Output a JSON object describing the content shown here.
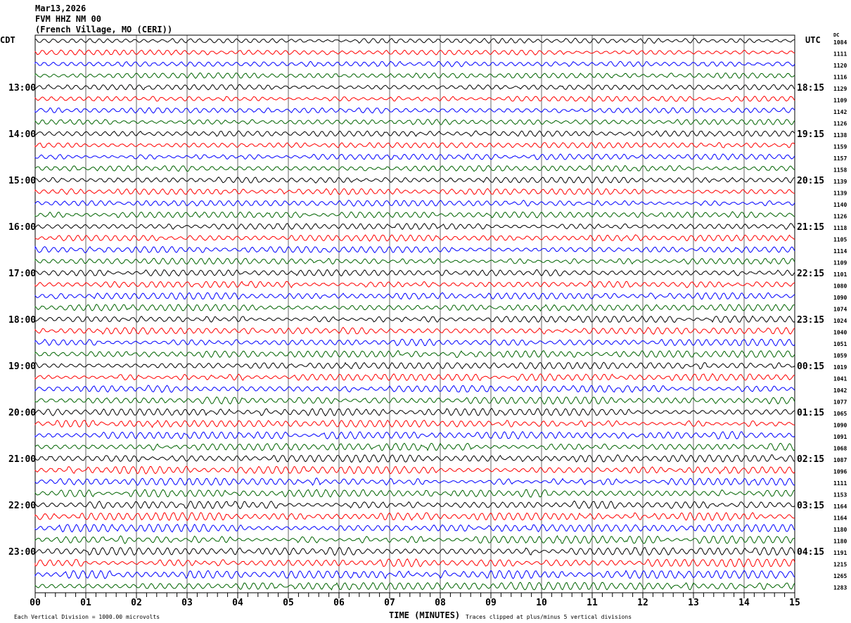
{
  "header": {
    "date": "Mar13,2026",
    "station": "FVM HHZ NM 00",
    "location": "(French Village, MO (CERI))"
  },
  "left_tz": "CDT",
  "right_tz": "UTC",
  "dc_header": "DC",
  "footer": {
    "scale_note": "Each Vertical Division = 1000.00 microvolts",
    "xlabel": "TIME (MINUTES)",
    "clip_note": "Traces clipped at plus/minus 5 vertical divisions"
  },
  "chart_data": {
    "type": "line",
    "title": "FVM HHZ NM 00",
    "xlabel": "TIME (MINUTES)",
    "xlim": [
      0,
      15
    ],
    "x_ticks": [
      "00",
      "01",
      "02",
      "03",
      "04",
      "05",
      "06",
      "07",
      "08",
      "09",
      "10",
      "11",
      "12",
      "13",
      "14",
      "15"
    ],
    "grid": true,
    "trace_colors": [
      "#000000",
      "#ff0000",
      "#0000ff",
      "#006400"
    ],
    "left_hour_labels": [
      "13:00",
      "14:00",
      "15:00",
      "16:00",
      "17:00",
      "18:00",
      "19:00",
      "20:00",
      "21:00",
      "22:00",
      "23:00"
    ],
    "right_hour_labels": [
      "18:15",
      "19:15",
      "20:15",
      "21:15",
      "22:15",
      "23:15",
      "00:15",
      "01:15",
      "02:15",
      "03:15",
      "04:15"
    ],
    "dc_offsets": [
      1084,
      1111,
      1120,
      1116,
      1129,
      1109,
      1142,
      1126,
      1138,
      1159,
      1157,
      1158,
      1139,
      1139,
      1140,
      1126,
      1118,
      1105,
      1114,
      1109,
      1101,
      1080,
      1090,
      1074,
      1024,
      1040,
      1051,
      1059,
      1019,
      1041,
      1042,
      1077,
      1065,
      1090,
      1091,
      1068,
      1087,
      1096,
      1111,
      1153,
      1164,
      1164,
      1180,
      1180,
      1191,
      1215,
      1265,
      1283
    ]
  }
}
